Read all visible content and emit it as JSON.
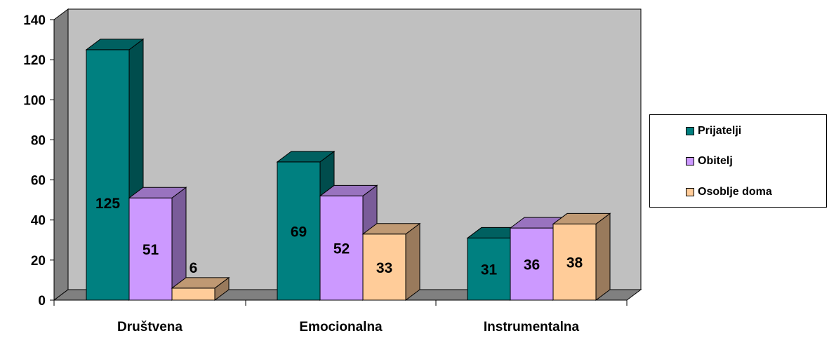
{
  "chart_data": {
    "type": "bar",
    "categories": [
      "Društvena",
      "Emocionalna",
      "Instrumentalna"
    ],
    "series": [
      {
        "name": "Prijatelji",
        "values": [
          125,
          69,
          31
        ],
        "color": "#008080"
      },
      {
        "name": "Obitelj",
        "values": [
          51,
          52,
          36
        ],
        "color": "#CC99FF"
      },
      {
        "name": "Osoblje doma",
        "values": [
          6,
          33,
          38
        ],
        "color": "#FFCC99"
      }
    ],
    "ylim": [
      0,
      140
    ],
    "yticks": [
      0,
      20,
      40,
      60,
      80,
      100,
      120,
      140
    ],
    "title": "",
    "xlabel": "",
    "ylabel": "",
    "grid": false,
    "legend_position": "right",
    "style": "3d-clustered-column",
    "wall_color": "#C0C0C0"
  }
}
